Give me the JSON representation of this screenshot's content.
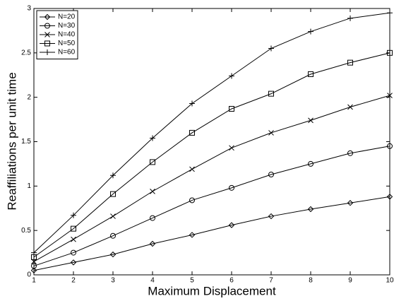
{
  "chart_data": {
    "type": "line",
    "x_label": "Maximum Displacement",
    "y_label": "Reaffiliations per unit time",
    "x": [
      1,
      2,
      3,
      4,
      5,
      6,
      7,
      8,
      9,
      10
    ],
    "xlim": [
      1,
      10
    ],
    "xticks": [
      1,
      2,
      3,
      4,
      5,
      6,
      7,
      8,
      9,
      10
    ],
    "ylim": [
      0,
      3
    ],
    "yticks": [
      0,
      0.5,
      1,
      1.5,
      2,
      2.5,
      3
    ],
    "grid": false,
    "legend": "upper left",
    "series": [
      {
        "name": "N=20",
        "color": "#000000",
        "marker": "diamond",
        "values": [
          0.05,
          0.14,
          0.23,
          0.35,
          0.45,
          0.56,
          0.66,
          0.74,
          0.81,
          0.88
        ]
      },
      {
        "name": "N=30",
        "color": "#000000",
        "marker": "circle",
        "values": [
          0.1,
          0.25,
          0.44,
          0.64,
          0.84,
          0.98,
          1.13,
          1.25,
          1.37,
          1.45
        ]
      },
      {
        "name": "N=40",
        "color": "#000000",
        "marker": "x",
        "values": [
          0.15,
          0.4,
          0.66,
          0.94,
          1.19,
          1.43,
          1.6,
          1.74,
          1.89,
          2.02
        ]
      },
      {
        "name": "N=50",
        "color": "#000000",
        "marker": "square",
        "values": [
          0.2,
          0.52,
          0.91,
          1.27,
          1.6,
          1.87,
          2.04,
          2.26,
          2.39,
          2.5
        ]
      },
      {
        "name": "N=60",
        "color": "#000000",
        "marker": "plus",
        "values": [
          0.25,
          0.67,
          1.12,
          1.54,
          1.93,
          2.24,
          2.55,
          2.74,
          2.89,
          2.95
        ]
      }
    ]
  }
}
